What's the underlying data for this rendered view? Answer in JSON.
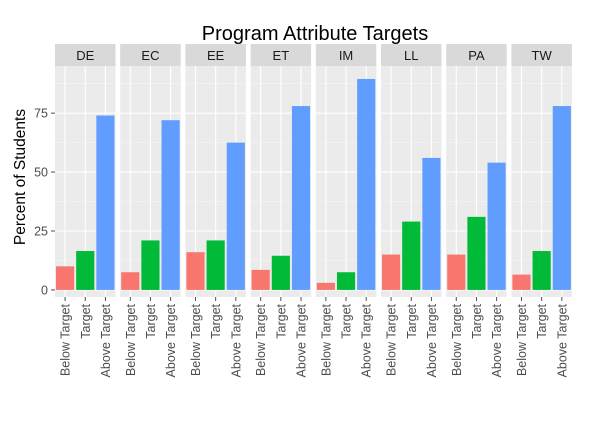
{
  "chart_data": {
    "type": "bar",
    "title": "Program Attribute Targets",
    "xlabel": "",
    "ylabel": "Percent of Students",
    "ylim": [
      -3,
      95
    ],
    "yticks": [
      0,
      25,
      50,
      75
    ],
    "categories": [
      "Below Target",
      "Target",
      "Above Target"
    ],
    "colors": {
      "Below Target": "#F8766D",
      "Target": "#00BA38",
      "Above Target": "#619CFF"
    },
    "panel_background": "#EBEBEB",
    "strip_background": "#D9D9D9",
    "grid": true,
    "legend": "none",
    "facets": [
      {
        "name": "DE",
        "values": [
          10,
          16.5,
          74
        ]
      },
      {
        "name": "EC",
        "values": [
          7.5,
          21,
          72
        ]
      },
      {
        "name": "EE",
        "values": [
          16,
          21,
          62.5
        ]
      },
      {
        "name": "ET",
        "values": [
          8.5,
          14.5,
          78
        ]
      },
      {
        "name": "IM",
        "values": [
          3,
          7.5,
          89.5
        ]
      },
      {
        "name": "LL",
        "values": [
          15,
          29,
          56
        ]
      },
      {
        "name": "PA",
        "values": [
          15,
          31,
          54
        ]
      },
      {
        "name": "TW",
        "values": [
          6.5,
          16.5,
          78
        ]
      }
    ]
  }
}
